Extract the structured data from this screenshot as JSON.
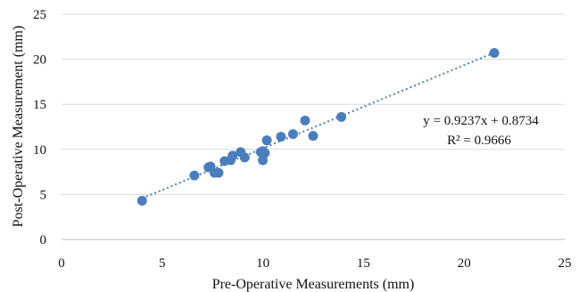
{
  "chart_data": {
    "type": "scatter",
    "title": "",
    "xlabel": "Pre-Operative Measurements (mm)",
    "ylabel": "Post-Operative Measurement (mm)",
    "xlim": [
      0,
      25
    ],
    "ylim": [
      0,
      25
    ],
    "x_ticks": [
      0,
      5,
      10,
      15,
      20,
      25
    ],
    "y_ticks": [
      0,
      5,
      10,
      15,
      20,
      25
    ],
    "grid": "horizontal",
    "legend": "none",
    "marker_color": "#4a7ebb",
    "trendline_color": "#4a7ebb",
    "series": [
      {
        "x": [
          4.0,
          6.6,
          7.3,
          7.4,
          7.6,
          7.8,
          8.1,
          8.4,
          8.5,
          8.9,
          9.1,
          9.9,
          10.0,
          10.1,
          10.0,
          10.2,
          10.9,
          11.5,
          12.1,
          12.5,
          13.9,
          21.5
        ],
        "y": [
          4.3,
          7.1,
          8.0,
          8.1,
          7.4,
          7.4,
          8.7,
          8.8,
          9.3,
          9.7,
          9.1,
          9.7,
          9.8,
          9.6,
          8.8,
          11.0,
          11.4,
          11.7,
          13.2,
          11.5,
          13.6,
          20.7
        ]
      }
    ],
    "trendline": {
      "slope": 0.9237,
      "intercept": 0.8734,
      "x_range": [
        4.0,
        21.5
      ],
      "equation": "y = 0.9237x + 0.8734",
      "r_squared": "R² = 0.9666"
    }
  }
}
